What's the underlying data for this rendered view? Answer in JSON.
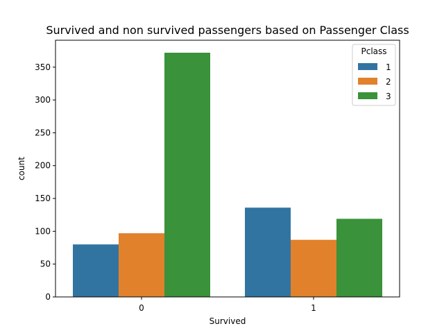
{
  "chart_data": {
    "type": "bar",
    "title": "Survived and non survived passengers based on Passenger Class",
    "xlabel": "Survived",
    "ylabel": "count",
    "categories": [
      "0",
      "1"
    ],
    "series": [
      {
        "name": "1",
        "values": [
          80,
          136
        ],
        "color": "#3274a1"
      },
      {
        "name": "2",
        "values": [
          97,
          87
        ],
        "color": "#e1812c"
      },
      {
        "name": "3",
        "values": [
          372,
          119
        ],
        "color": "#3a923a"
      }
    ],
    "ylim": [
      0,
      391
    ],
    "yticks": [
      0,
      50,
      100,
      150,
      200,
      250,
      300,
      350
    ],
    "legend": {
      "title": "Pclass",
      "placement": "top-right"
    },
    "grid": false
  }
}
